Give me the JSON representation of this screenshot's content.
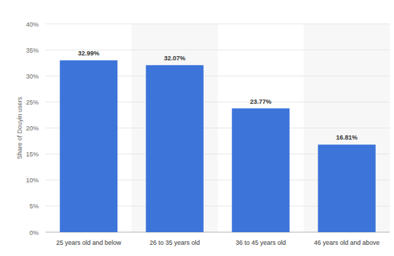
{
  "chart_data": {
    "type": "bar",
    "y_label": "Share of Douyin users",
    "categories": [
      "25 years old and below",
      "26 to 35 years old",
      "36 to 45 years old",
      "46 years old and above"
    ],
    "values": [
      32.99,
      32.07,
      23.77,
      16.81
    ],
    "value_labels": [
      "32.99%",
      "32.07%",
      "23.77%",
      "16.81%"
    ],
    "color": "#3c74d9",
    "ylim": [
      0,
      40
    ],
    "yticks": [
      {
        "value": 0,
        "label": "0%"
      },
      {
        "value": 5,
        "label": "5%"
      },
      {
        "value": 10,
        "label": "10%"
      },
      {
        "value": 15,
        "label": "15%"
      },
      {
        "value": 20,
        "label": "20%"
      },
      {
        "value": 25,
        "label": "25%"
      },
      {
        "value": 30,
        "label": "30%"
      },
      {
        "value": 35,
        "label": "35%"
      },
      {
        "value": 40,
        "label": "40%"
      }
    ],
    "grid": true,
    "data_labels": true
  }
}
